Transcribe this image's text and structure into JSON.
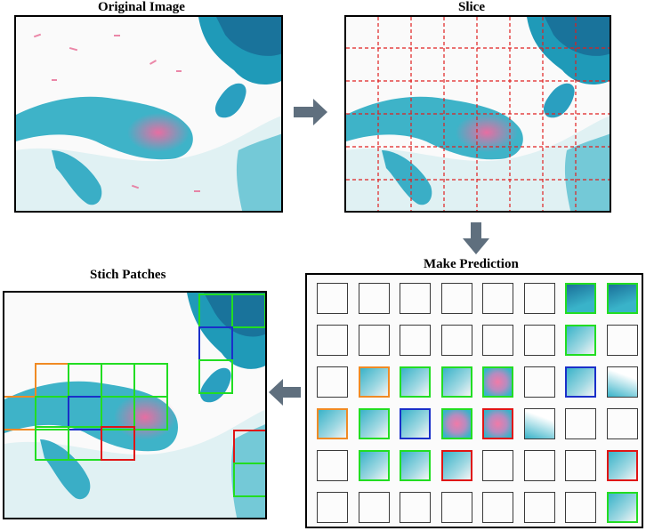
{
  "titles": {
    "original": "Original Image",
    "slice": "Slice",
    "prediction": "Make  Prediction",
    "stitch": "Stich Patches"
  },
  "colors": {
    "normal": "#22dd22",
    "atypical": "#f08a24",
    "suspicious": "#1a2fc9",
    "malignant": "#e01515",
    "slice_lines": "#e02020",
    "arrow": "#5f6f7e",
    "stain_cyan": "#39b3c9",
    "stain_pink": "#f07aa8"
  },
  "prediction_grid": {
    "rows": 6,
    "cols": 8,
    "labels": [
      [
        "none",
        "none",
        "none",
        "none",
        "none",
        "none",
        "normal",
        "normal"
      ],
      [
        "none",
        "none",
        "none",
        "none",
        "none",
        "none",
        "normal",
        "none"
      ],
      [
        "none",
        "atypical",
        "normal",
        "normal",
        "normal",
        "none",
        "suspicious",
        "none"
      ],
      [
        "atypical",
        "normal",
        "suspicious",
        "normal",
        "malignant",
        "none",
        "none",
        "none"
      ],
      [
        "none",
        "normal",
        "normal",
        "malignant",
        "none",
        "none",
        "none",
        "malignant"
      ],
      [
        "none",
        "none",
        "none",
        "none",
        "none",
        "none",
        "none",
        "normal"
      ]
    ]
  }
}
